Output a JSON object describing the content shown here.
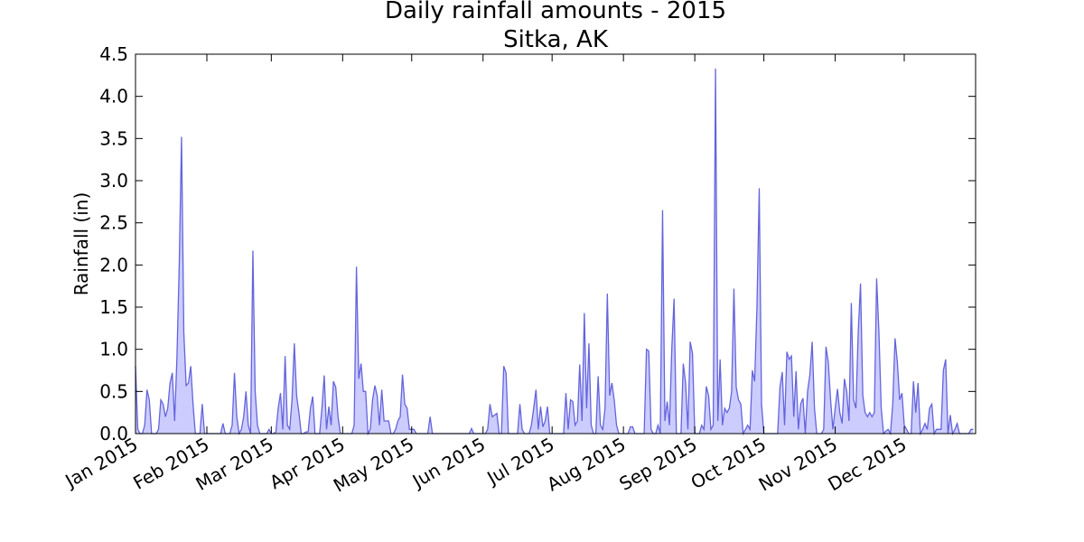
{
  "chart_data": {
    "type": "area",
    "title": "Daily rainfall amounts - 2015",
    "subtitle": "Sitka, AK",
    "y_label": "Rainfall (in)",
    "line_color": "#6464dc",
    "fill_color": "#ccccff",
    "xlim": [
      0,
      365
    ],
    "ylim": [
      0,
      4.5
    ],
    "xticks": [
      {
        "value": 0,
        "label": "Jan 2015"
      },
      {
        "value": 31,
        "label": "Feb 2015"
      },
      {
        "value": 59,
        "label": "Mar 2015"
      },
      {
        "value": 90,
        "label": "Apr 2015"
      },
      {
        "value": 120,
        "label": "May 2015"
      },
      {
        "value": 151,
        "label": "Jun 2015"
      },
      {
        "value": 181,
        "label": "Jul 2015"
      },
      {
        "value": 212,
        "label": "Aug 2015"
      },
      {
        "value": 243,
        "label": "Sep 2015"
      },
      {
        "value": 273,
        "label": "Oct 2015"
      },
      {
        "value": 304,
        "label": "Nov 2015"
      },
      {
        "value": 334,
        "label": "Dec 2015"
      }
    ],
    "yticks": [
      {
        "value": 0,
        "label": "0.0"
      },
      0.5,
      {
        "value": 1,
        "label": "1.0"
      },
      1.5,
      {
        "value": 2,
        "label": "2.0"
      },
      2.5,
      {
        "value": 3,
        "label": "3.0"
      },
      3.5,
      {
        "value": 4,
        "label": "4.0"
      },
      4.5
    ],
    "x": [
      0,
      1,
      2,
      3,
      4,
      5,
      6,
      7,
      8,
      9,
      10,
      11,
      12,
      13,
      14,
      15,
      16,
      17,
      18,
      19,
      20,
      21,
      22,
      23,
      24,
      25,
      26,
      27,
      28,
      29,
      30,
      31,
      32,
      33,
      34,
      35,
      36,
      37,
      38,
      39,
      40,
      41,
      42,
      43,
      44,
      45,
      46,
      47,
      48,
      49,
      50,
      51,
      52,
      53,
      54,
      55,
      56,
      57,
      58,
      59,
      60,
      61,
      62,
      63,
      64,
      65,
      66,
      67,
      68,
      69,
      70,
      71,
      72,
      73,
      74,
      75,
      76,
      77,
      78,
      79,
      80,
      81,
      82,
      83,
      84,
      85,
      86,
      87,
      88,
      89,
      90,
      91,
      92,
      93,
      94,
      95,
      96,
      97,
      98,
      99,
      100,
      101,
      102,
      103,
      104,
      105,
      106,
      107,
      108,
      109,
      110,
      111,
      112,
      113,
      114,
      115,
      116,
      117,
      118,
      119,
      120,
      121,
      122,
      123,
      124,
      125,
      126,
      127,
      128,
      129,
      130,
      131,
      132,
      133,
      134,
      135,
      136,
      137,
      138,
      139,
      140,
      141,
      142,
      143,
      144,
      145,
      146,
      147,
      148,
      149,
      150,
      151,
      152,
      153,
      154,
      155,
      156,
      157,
      158,
      159,
      160,
      161,
      162,
      163,
      164,
      165,
      166,
      167,
      168,
      169,
      170,
      171,
      172,
      173,
      174,
      175,
      176,
      177,
      178,
      179,
      180,
      181,
      182,
      183,
      184,
      185,
      186,
      187,
      188,
      189,
      190,
      191,
      192,
      193,
      194,
      195,
      196,
      197,
      198,
      199,
      200,
      201,
      202,
      203,
      204,
      205,
      206,
      207,
      208,
      209,
      210,
      211,
      212,
      213,
      214,
      215,
      216,
      217,
      218,
      219,
      220,
      221,
      222,
      223,
      224,
      225,
      226,
      227,
      228,
      229,
      230,
      231,
      232,
      233,
      234,
      235,
      236,
      237,
      238,
      239,
      240,
      241,
      242,
      243,
      244,
      245,
      246,
      247,
      248,
      249,
      250,
      251,
      252,
      253,
      254,
      255,
      256,
      257,
      258,
      259,
      260,
      261,
      262,
      263,
      264,
      265,
      266,
      267,
      268,
      269,
      270,
      271,
      272,
      273,
      274,
      275,
      276,
      277,
      278,
      279,
      280,
      281,
      282,
      283,
      284,
      285,
      286,
      287,
      288,
      289,
      290,
      291,
      292,
      293,
      294,
      295,
      296,
      297,
      298,
      299,
      300,
      301,
      302,
      303,
      304,
      305,
      306,
      307,
      308,
      309,
      310,
      311,
      312,
      313,
      314,
      315,
      316,
      317,
      318,
      319,
      320,
      321,
      322,
      323,
      324,
      325,
      326,
      327,
      328,
      329,
      330,
      331,
      332,
      333,
      334,
      335,
      336,
      337,
      338,
      339,
      340,
      341,
      342,
      343,
      344,
      345,
      346,
      347,
      348,
      349,
      350,
      351,
      352,
      353,
      354,
      355,
      356,
      357,
      358,
      359,
      360,
      361,
      362,
      363,
      364
    ],
    "values": [
      0.8,
      0.05,
      0,
      0,
      0.1,
      0.52,
      0.4,
      0,
      0,
      0,
      0.05,
      0.4,
      0.35,
      0.2,
      0.3,
      0.6,
      0.72,
      0.15,
      0.9,
      2.0,
      3.52,
      1.2,
      0.57,
      0.6,
      0.8,
      0.35,
      0,
      0,
      0,
      0.35,
      0,
      0,
      0,
      0,
      0,
      0,
      0,
      0,
      0.12,
      0,
      0,
      0,
      0.1,
      0.72,
      0.2,
      0,
      0.05,
      0.2,
      0.5,
      0.1,
      0,
      2.17,
      0.5,
      0.1,
      0,
      0,
      0,
      0,
      0.05,
      0,
      0,
      0.02,
      0.3,
      0.48,
      0.05,
      0.92,
      0.1,
      0.05,
      0.4,
      1.07,
      0.45,
      0.25,
      0,
      0,
      0.02,
      0.02,
      0.3,
      0.44,
      0,
      0,
      0,
      0.3,
      0.69,
      0.05,
      0.32,
      0.1,
      0.62,
      0.55,
      0.2,
      0,
      0,
      0,
      0,
      0,
      0,
      0.1,
      1.98,
      0.65,
      0.83,
      0.5,
      0.5,
      0,
      0.05,
      0.4,
      0.57,
      0.45,
      0.1,
      0.52,
      0.15,
      0.15,
      0.15,
      0,
      0,
      0.05,
      0.15,
      0.2,
      0.7,
      0.35,
      0.3,
      0.05,
      0.05,
      0.05,
      0,
      0,
      0,
      0,
      0,
      0,
      0.2,
      0,
      0,
      0,
      0,
      0,
      0,
      0,
      0,
      0,
      0,
      0,
      0,
      0,
      0,
      0,
      0,
      0,
      0.06,
      0,
      0,
      0,
      0,
      0,
      0,
      0.05,
      0.35,
      0.2,
      0.22,
      0.24,
      0,
      0,
      0.8,
      0.72,
      0,
      0,
      0,
      0,
      0,
      0.35,
      0.05,
      0,
      0,
      0,
      0.1,
      0.3,
      0.52,
      0.05,
      0.32,
      0.08,
      0.15,
      0.32,
      0,
      0,
      0,
      0,
      0,
      0,
      0,
      0.48,
      0.05,
      0.4,
      0.38,
      0.1,
      0.15,
      0.82,
      0.15,
      1.43,
      0.3,
      1.07,
      0.1,
      0,
      0,
      0.68,
      0.1,
      0.05,
      0.3,
      1.66,
      0.45,
      0.6,
      0.4,
      0.1,
      0,
      0,
      0,
      0,
      0,
      0.08,
      0.08,
      0,
      0,
      0,
      0,
      0,
      1.0,
      0.98,
      0.05,
      0,
      0,
      0.1,
      0,
      2.65,
      0.15,
      0.38,
      0.1,
      1.0,
      1.6,
      0,
      0,
      0,
      0.83,
      0.6,
      0.05,
      1.09,
      0.95,
      0,
      0,
      0,
      0.1,
      0.05,
      0.56,
      0.45,
      0.05,
      0.1,
      4.33,
      0.15,
      0.88,
      0.1,
      0.3,
      0.25,
      0.3,
      0.5,
      1.72,
      0.55,
      0.4,
      0.35,
      0,
      0.05,
      0.1,
      0.05,
      0.75,
      0.62,
      1.5,
      2.91,
      0.35,
      0,
      0,
      0,
      0,
      0,
      0,
      0,
      0.55,
      0.73,
      0.1,
      0.97,
      0.88,
      0.92,
      0.2,
      0.74,
      0.05,
      0.35,
      0.42,
      0,
      0.5,
      0.7,
      1.09,
      0.3,
      0,
      0,
      0,
      0.05,
      1.03,
      0.85,
      0.4,
      0.05,
      0.3,
      0.53,
      0.25,
      0.12,
      0.65,
      0.5,
      0.15,
      1.55,
      0.4,
      0.3,
      1.2,
      1.78,
      0.45,
      0.25,
      0.2,
      0.25,
      0.2,
      0.25,
      1.84,
      1.2,
      0.3,
      0,
      0.03,
      0.05,
      0,
      0.35,
      1.13,
      0.85,
      0.4,
      0.48,
      0.1,
      0.05,
      0,
      0,
      0.62,
      0.25,
      0.6,
      0,
      0.05,
      0.12,
      0.05,
      0.3,
      0.35,
      0,
      0.05,
      0.05,
      0.05,
      0.75,
      0.88,
      0,
      0.22,
      0,
      0.05,
      0.12,
      0,
      0,
      0,
      0,
      0,
      0.05,
      0.05
    ]
  }
}
